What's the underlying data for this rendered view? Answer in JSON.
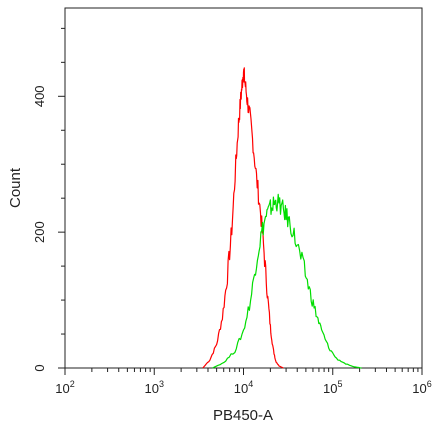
{
  "chart_data": {
    "type": "line",
    "title": "",
    "xlabel": "PB450-A",
    "ylabel": "Count",
    "x_scale": "log",
    "xlim": [
      100,
      1000000
    ],
    "ylim": [
      0,
      530
    ],
    "grid": false,
    "x_ticks": [
      {
        "value": 100,
        "base": "10",
        "exp": "2"
      },
      {
        "value": 1000,
        "base": "10",
        "exp": "3"
      },
      {
        "value": 10000,
        "base": "10",
        "exp": "4"
      },
      {
        "value": 100000,
        "base": "10",
        "exp": "5"
      },
      {
        "value": 1000000,
        "base": "10",
        "exp": "6"
      }
    ],
    "y_ticks": [
      {
        "value": 0,
        "label": "0"
      },
      {
        "value": 200,
        "label": "200"
      },
      {
        "value": 400,
        "label": "400"
      }
    ],
    "series": [
      {
        "color": "#ff0000",
        "x": [
          3500,
          4200,
          5000,
          5800,
          6600,
          7400,
          8200,
          8800,
          9300,
          9700,
          10000,
          10400,
          11000,
          11800,
          12800,
          14000,
          15500,
          17000,
          18500,
          20000,
          21500,
          23000,
          25000,
          28000
        ],
        "y": [
          0,
          12,
          35,
          75,
          135,
          205,
          300,
          360,
          395,
          420,
          438,
          420,
          395,
          370,
          330,
          280,
          230,
          170,
          110,
          60,
          28,
          10,
          3,
          0
        ]
      },
      {
        "color": "#00dd00",
        "x": [
          4500,
          6000,
          8000,
          10000,
          12000,
          14000,
          16000,
          18000,
          20000,
          22000,
          24000,
          27000,
          30000,
          34000,
          40000,
          48000,
          56000,
          65000,
          75000,
          90000,
          110000,
          140000,
          170000,
          210000
        ],
        "y": [
          0,
          8,
          25,
          55,
          100,
          160,
          200,
          225,
          235,
          242,
          245,
          235,
          225,
          210,
          180,
          145,
          110,
          80,
          55,
          30,
          14,
          6,
          2,
          0
        ]
      }
    ]
  }
}
